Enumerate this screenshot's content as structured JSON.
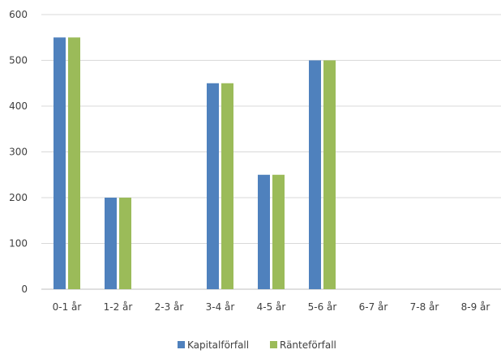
{
  "chart_data": {
    "type": "bar",
    "categories": [
      "0-1 år",
      "1-2 år",
      "2-3 år",
      "3-4 år",
      "4-5 år",
      "5-6 år",
      "6-7 år",
      "7-8 år",
      "8-9 år"
    ],
    "series": [
      {
        "name": "Kapitalförfall",
        "color": "#4F81BD",
        "values": [
          550,
          200,
          0,
          450,
          250,
          500,
          0,
          0,
          0
        ]
      },
      {
        "name": "Ränteförfall",
        "color": "#9BBB59",
        "values": [
          550,
          200,
          0,
          450,
          250,
          500,
          0,
          0,
          0
        ]
      }
    ],
    "yticks": [
      "0",
      "100",
      "200",
      "300",
      "400",
      "500",
      "600"
    ],
    "ylim": [
      0,
      600
    ],
    "grid": true,
    "legend_position": "bottom"
  }
}
